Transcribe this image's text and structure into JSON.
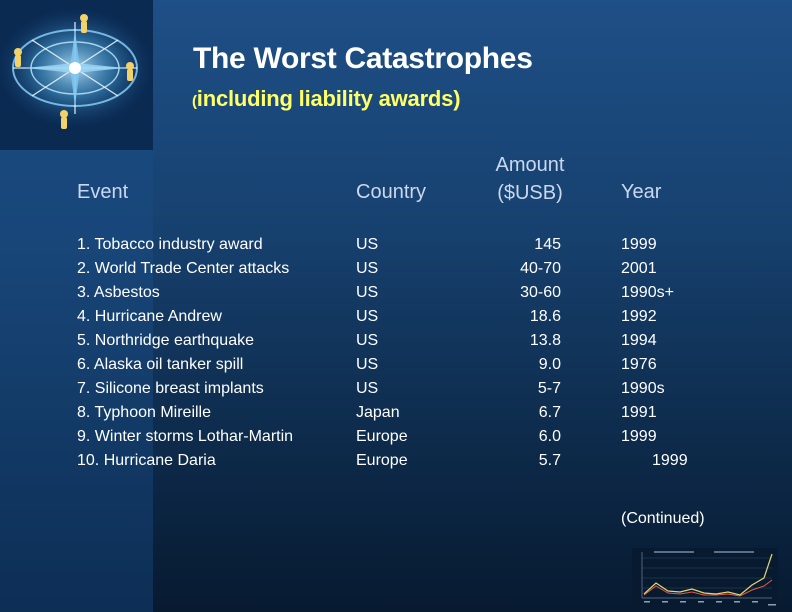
{
  "slide": {
    "title": "The Worst Catastrophes",
    "subtitle_paren": "(",
    "subtitle_text": "including liability awards)",
    "continued": "(Continued)"
  },
  "table": {
    "headers": {
      "event": "Event",
      "country": "Country",
      "amount_line1": "Amount",
      "amount_line2": "($USB)",
      "year": "Year"
    },
    "rows": [
      {
        "event": "1. Tobacco industry award",
        "country": "US",
        "amount": "145",
        "year": "1999"
      },
      {
        "event": "2. World Trade Center attacks",
        "country": "US",
        "amount": "40-70",
        "year": "2001"
      },
      {
        "event": "3. Asbestos",
        "country": "US",
        "amount": "30-60",
        "year": "1990s+"
      },
      {
        "event": "4. Hurricane Andrew",
        "country": "US",
        "amount": "18.6",
        "year": "1992"
      },
      {
        "event": "5. Northridge earthquake",
        "country": "US",
        "amount": "13.8",
        "year": "1994"
      },
      {
        "event": "6. Alaska oil tanker spill",
        "country": "US",
        "amount": "9.0",
        "year": "1976"
      },
      {
        "event": "7. Silicone breast implants",
        "country": "US",
        "amount": "5-7",
        "year": "1990s"
      },
      {
        "event": "8. Typhoon Mireille",
        "country": "Japan",
        "amount": "6.7",
        "year": "1991"
      },
      {
        "event": "9. Winter storms Lothar-Martin",
        "country": "Europe",
        "amount": "6.0",
        "year": "1999"
      },
      {
        "event": "10. Hurricane Daria",
        "country": "Europe",
        "amount": "5.7",
        "year": "1999"
      }
    ]
  },
  "colors": {
    "title": "#ffffff",
    "subtitle": "#ffff66",
    "header": "#c9d8ee",
    "background": "#174271"
  },
  "icons": {
    "logo": "compass-rose-logo-icon",
    "thumbnail": "mini-line-chart-thumbnail"
  }
}
